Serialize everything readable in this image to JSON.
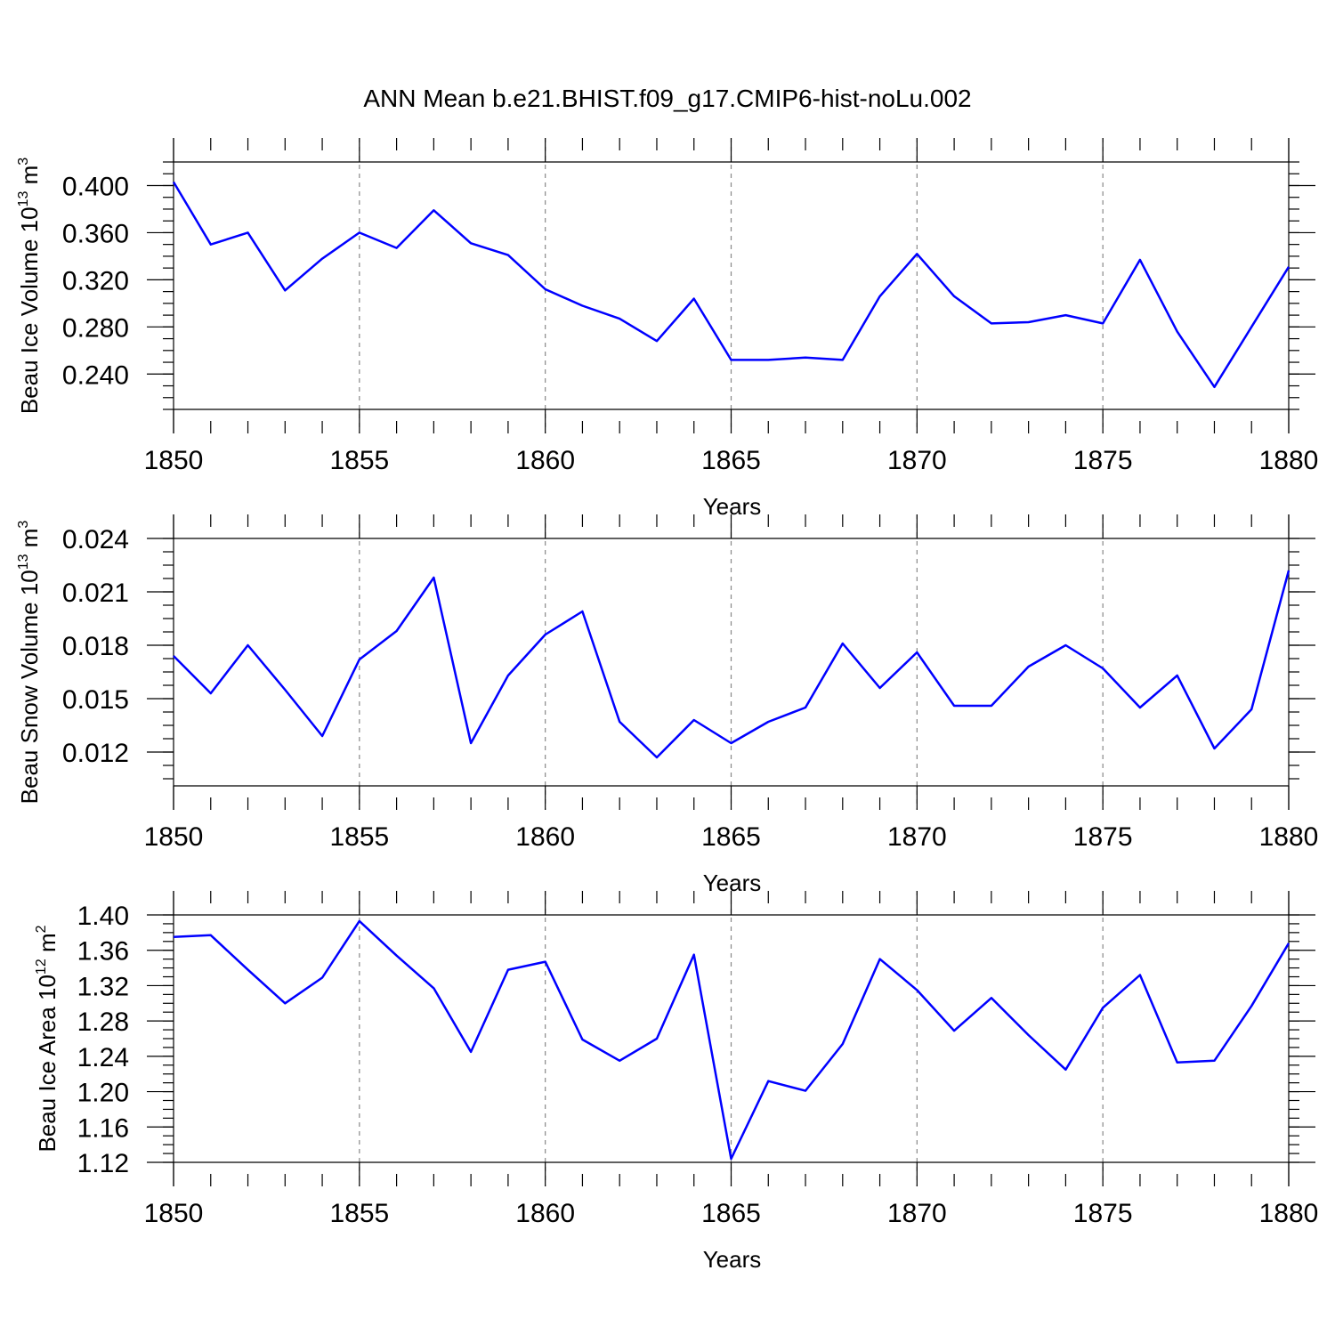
{
  "title": "ANN Mean b.e21.BHIST.f09_g17.CMIP6-hist-noLu.002",
  "colors": {
    "series": "#0000ff",
    "grid": "#888888"
  },
  "chart_data": [
    {
      "type": "line",
      "xlabel": "Years",
      "ylabel": {
        "main": "Beau Ice Volume 10",
        "exp": "13",
        "unit": " m",
        "unit_exp": "3"
      },
      "xlim": [
        1850,
        1880
      ],
      "ylim": [
        0.21,
        0.42
      ],
      "xticks": [
        1850,
        1855,
        1860,
        1865,
        1870,
        1875,
        1880
      ],
      "yticks": [
        "0.240",
        "0.280",
        "0.320",
        "0.360",
        "0.400"
      ],
      "ytick_values": [
        0.24,
        0.28,
        0.32,
        0.36,
        0.4
      ],
      "grid": "vertical dashed at major x ticks",
      "series": [
        {
          "x": [
            1850,
            1851,
            1852,
            1853,
            1854,
            1855,
            1856,
            1857,
            1858,
            1859,
            1860,
            1861,
            1862,
            1863,
            1864,
            1865,
            1866,
            1867,
            1868,
            1869,
            1870,
            1871,
            1872,
            1873,
            1874,
            1875,
            1876,
            1877,
            1878,
            1879,
            1880
          ],
          "values": [
            0.403,
            0.35,
            0.36,
            0.311,
            0.338,
            0.36,
            0.347,
            0.379,
            0.351,
            0.341,
            0.312,
            0.298,
            0.287,
            0.268,
            0.304,
            0.252,
            0.252,
            0.254,
            0.252,
            0.306,
            0.342,
            0.306,
            0.283,
            0.284,
            0.29,
            0.283,
            0.337,
            0.276,
            0.229,
            0.28,
            0.331
          ]
        }
      ]
    },
    {
      "type": "line",
      "xlabel": "Years",
      "ylabel": {
        "main": "Beau Snow Volume 10",
        "exp": "13",
        "unit": " m",
        "unit_exp": "3"
      },
      "xlim": [
        1850,
        1880
      ],
      "ylim": [
        0.0101,
        0.024
      ],
      "xticks": [
        1850,
        1855,
        1860,
        1865,
        1870,
        1875,
        1880
      ],
      "yticks": [
        "0.012",
        "0.015",
        "0.018",
        "0.021",
        "0.024"
      ],
      "ytick_values": [
        0.012,
        0.015,
        0.018,
        0.021,
        0.024
      ],
      "grid": "vertical dashed at major x ticks",
      "series": [
        {
          "x": [
            1850,
            1851,
            1852,
            1853,
            1854,
            1855,
            1856,
            1857,
            1858,
            1859,
            1860,
            1861,
            1862,
            1863,
            1864,
            1865,
            1866,
            1867,
            1868,
            1869,
            1870,
            1871,
            1872,
            1873,
            1874,
            1875,
            1876,
            1877,
            1878,
            1879,
            1880
          ],
          "values": [
            0.0174,
            0.0153,
            0.018,
            0.0155,
            0.0129,
            0.0172,
            0.0188,
            0.0218,
            0.0125,
            0.0163,
            0.0186,
            0.0199,
            0.0137,
            0.0117,
            0.0138,
            0.0125,
            0.0137,
            0.0145,
            0.0181,
            0.0156,
            0.0176,
            0.0146,
            0.0146,
            0.0168,
            0.018,
            0.0167,
            0.0145,
            0.0163,
            0.0122,
            0.0144,
            0.0222
          ]
        }
      ]
    },
    {
      "type": "line",
      "xlabel": "Years",
      "ylabel": {
        "main": "Beau Ice Area 10",
        "exp": "12",
        "unit": " m",
        "unit_exp": "2"
      },
      "xlim": [
        1850,
        1880
      ],
      "ylim": [
        1.12,
        1.4
      ],
      "xticks": [
        1850,
        1855,
        1860,
        1865,
        1870,
        1875,
        1880
      ],
      "yticks": [
        "1.12",
        "1.16",
        "1.20",
        "1.24",
        "1.28",
        "1.32",
        "1.36",
        "1.40"
      ],
      "ytick_values": [
        1.12,
        1.16,
        1.2,
        1.24,
        1.28,
        1.32,
        1.36,
        1.4
      ],
      "grid": "vertical dashed at major x ticks",
      "series": [
        {
          "x": [
            1850,
            1851,
            1852,
            1853,
            1854,
            1855,
            1856,
            1857,
            1858,
            1859,
            1860,
            1861,
            1862,
            1863,
            1864,
            1865,
            1866,
            1867,
            1868,
            1869,
            1870,
            1871,
            1872,
            1873,
            1874,
            1875,
            1876,
            1877,
            1878,
            1879,
            1880
          ],
          "values": [
            1.375,
            1.377,
            1.338,
            1.3,
            1.329,
            1.393,
            1.354,
            1.317,
            1.245,
            1.338,
            1.347,
            1.259,
            1.235,
            1.26,
            1.355,
            1.124,
            1.212,
            1.201,
            1.254,
            1.35,
            1.315,
            1.269,
            1.306,
            1.264,
            1.225,
            1.295,
            1.332,
            1.233,
            1.235,
            1.297,
            1.368
          ]
        }
      ]
    }
  ]
}
